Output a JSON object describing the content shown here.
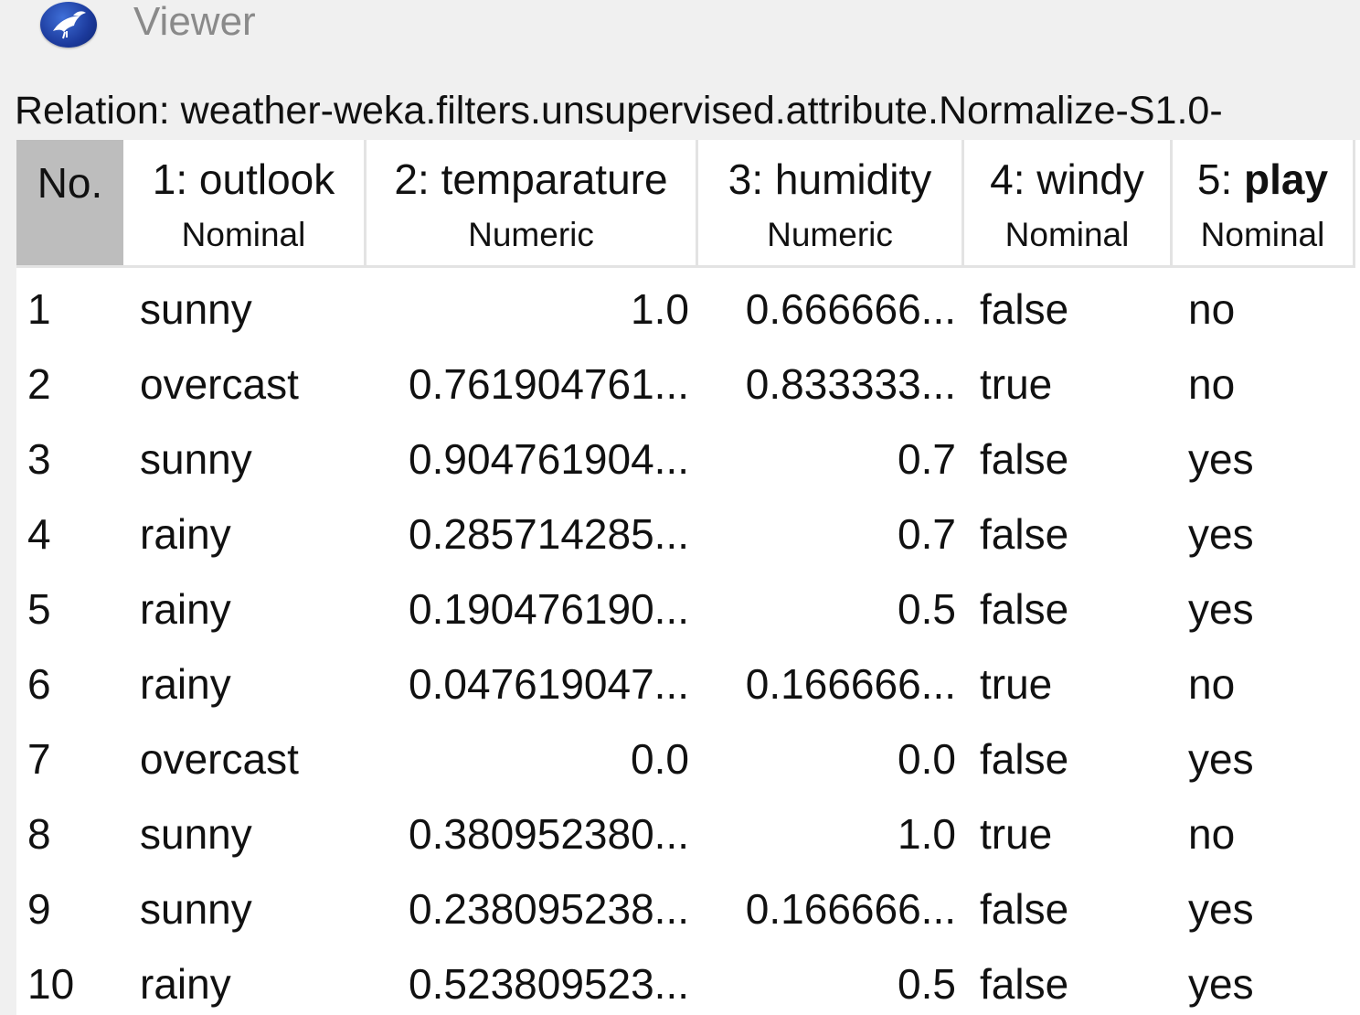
{
  "window": {
    "title": "Viewer",
    "icon": "weka-bird-icon"
  },
  "relation": {
    "label": "Relation: weather-weka.filters.unsupervised.attribute.Normalize-S1.0-"
  },
  "table": {
    "columns": [
      {
        "index_label": "No.",
        "type": ""
      },
      {
        "prefix": "1: ",
        "name": "outlook",
        "type": "Nominal",
        "bold": false
      },
      {
        "prefix": "2: ",
        "name": "temparature",
        "type": "Numeric",
        "bold": false
      },
      {
        "prefix": "3: ",
        "name": "humidity",
        "type": "Numeric",
        "bold": false
      },
      {
        "prefix": "4: ",
        "name": "windy",
        "type": "Nominal",
        "bold": false
      },
      {
        "prefix": "5: ",
        "name": "play",
        "type": "Nominal",
        "bold": true
      }
    ],
    "rows": [
      [
        "1",
        "sunny",
        "1.0",
        "0.666666...",
        "false",
        "no"
      ],
      [
        "2",
        "overcast",
        "0.761904761...",
        "0.833333...",
        "true",
        "no"
      ],
      [
        "3",
        "sunny",
        "0.904761904...",
        "0.7",
        "false",
        "yes"
      ],
      [
        "4",
        "rainy",
        "0.285714285...",
        "0.7",
        "false",
        "yes"
      ],
      [
        "5",
        "rainy",
        "0.190476190...",
        "0.5",
        "false",
        "yes"
      ],
      [
        "6",
        "rainy",
        "0.047619047...",
        "0.166666...",
        "true",
        "no"
      ],
      [
        "7",
        "overcast",
        "0.0",
        "0.0",
        "false",
        "yes"
      ],
      [
        "8",
        "sunny",
        "0.380952380...",
        "1.0",
        "true",
        "no"
      ],
      [
        "9",
        "sunny",
        "0.238095238...",
        "0.166666...",
        "false",
        "yes"
      ],
      [
        "10",
        "rainy",
        "0.523809523...",
        "0.5",
        "false",
        "yes"
      ]
    ]
  },
  "colors": {
    "index_header_bg": "#bdbdbd",
    "grid_bg": "#ffffff",
    "window_bg": "#f0f0f0",
    "title_text": "#8a8a8a"
  }
}
